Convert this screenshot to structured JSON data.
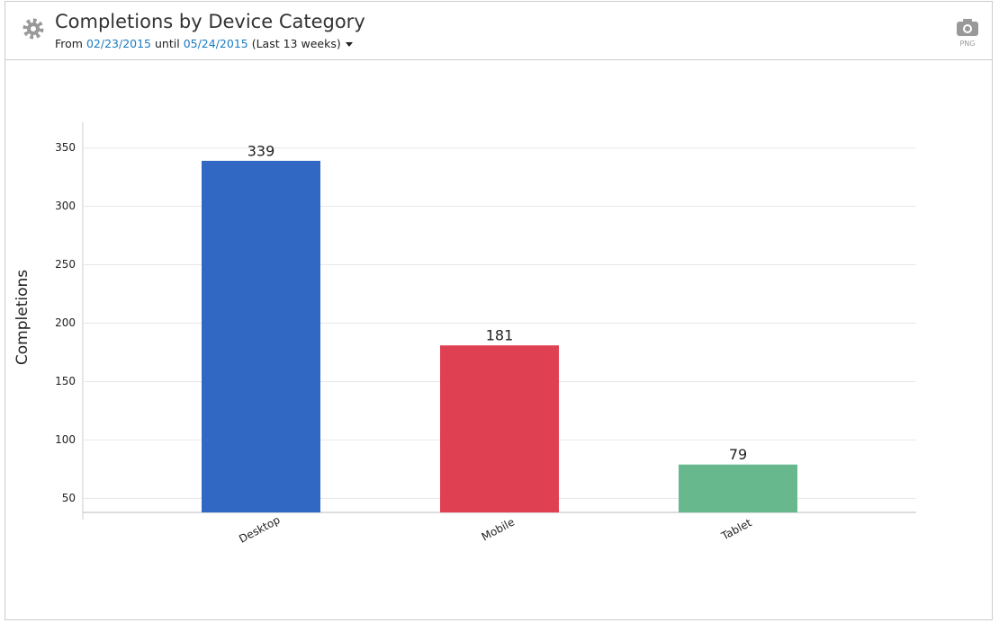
{
  "header": {
    "title": "Completions by Device Category",
    "from": "From",
    "start_date": "02/23/2015",
    "until": "until",
    "end_date": "05/24/2015",
    "range": "(Last 13 weeks)",
    "export": "PNG"
  },
  "chart_data": {
    "type": "bar",
    "y_label": "Completions",
    "categories": [
      "Desktop",
      "Mobile",
      "Tablet"
    ],
    "values": [
      339,
      181,
      79
    ],
    "colors": [
      "#3068c4",
      "#e04152",
      "#68b88e"
    ],
    "ylim": [
      38,
      372
    ],
    "yticks": [
      50,
      100,
      150,
      200,
      250,
      300,
      350
    ],
    "grid": true
  }
}
